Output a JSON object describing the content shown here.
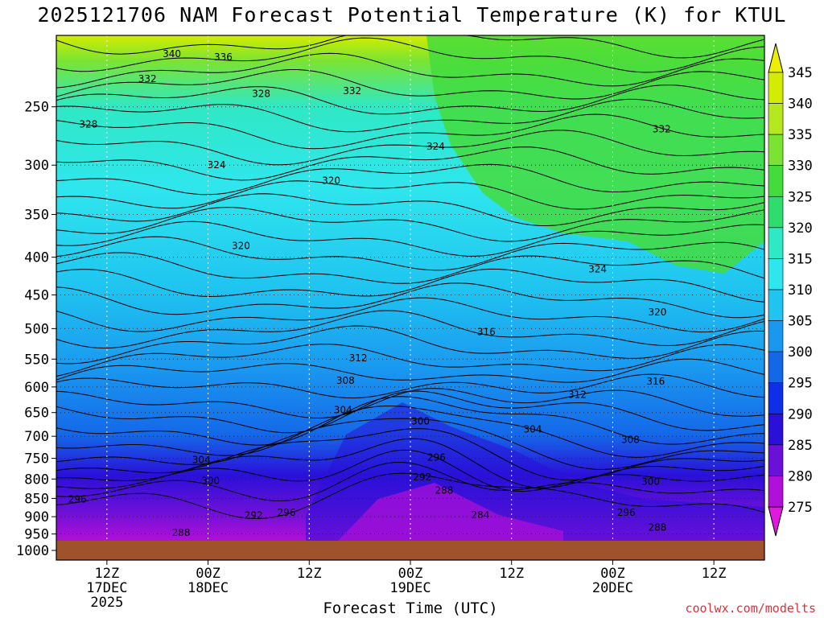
{
  "title": "2025121706 NAM Forecast Potential Temperature (K) for KTUL",
  "credit": "coolwx.com/modelts",
  "chart_data": {
    "type": "heatmap",
    "title": "2025121706 NAM Forecast Potential Temperature (K) for KTUL",
    "xlabel": "Forecast Time (UTC)",
    "ylabel": "",
    "x_ticks": [
      {
        "hour": 6,
        "lines": [
          "12Z",
          "17DEC",
          "2025"
        ]
      },
      {
        "hour": 18,
        "lines": [
          "00Z",
          "18DEC"
        ]
      },
      {
        "hour": 30,
        "lines": [
          "12Z"
        ]
      },
      {
        "hour": 42,
        "lines": [
          "00Z",
          "19DEC"
        ]
      },
      {
        "hour": 54,
        "lines": [
          "12Z"
        ]
      },
      {
        "hour": 66,
        "lines": [
          "00Z",
          "20DEC"
        ]
      },
      {
        "hour": 78,
        "lines": [
          "12Z"
        ]
      }
    ],
    "xlim": [
      0,
      84
    ],
    "y_ticks": [
      250,
      300,
      350,
      400,
      450,
      500,
      550,
      600,
      650,
      700,
      750,
      800,
      850,
      900,
      950,
      1000
    ],
    "ylim": [
      200,
      1000
    ],
    "y_scale": "log-pressure",
    "grid": true,
    "colorbar": {
      "ticks": [
        345,
        340,
        335,
        330,
        325,
        320,
        315,
        310,
        305,
        300,
        295,
        290,
        285,
        280,
        275
      ],
      "colors": [
        "#d4ec00",
        "#b6e820",
        "#7be432",
        "#44dc3c",
        "#2fdc6e",
        "#2fe8c4",
        "#2fe6ee",
        "#1fc4f0",
        "#1a98f0",
        "#1468e8",
        "#0e2ee8",
        "#2a10d8",
        "#6a10d8",
        "#b010d8",
        "#e018e0"
      ]
    },
    "ground_color": "#a0522d",
    "contour_interval": 4,
    "contour_labels": [
      {
        "value": "340",
        "hour": 13.7,
        "p": 212
      },
      {
        "value": "336",
        "hour": 19.8,
        "p": 214
      },
      {
        "value": "332",
        "hour": 10.8,
        "p": 229
      },
      {
        "value": "332",
        "hour": 35.1,
        "p": 238
      },
      {
        "value": "332",
        "hour": 71.8,
        "p": 268
      },
      {
        "value": "328",
        "hour": 3.8,
        "p": 264
      },
      {
        "value": "328",
        "hour": 24.3,
        "p": 240
      },
      {
        "value": "324",
        "hour": 19.0,
        "p": 300
      },
      {
        "value": "324",
        "hour": 45.0,
        "p": 283
      },
      {
        "value": "324",
        "hour": 64.2,
        "p": 415
      },
      {
        "value": "320",
        "hour": 32.6,
        "p": 315
      },
      {
        "value": "320",
        "hour": 21.9,
        "p": 386
      },
      {
        "value": "320",
        "hour": 71.3,
        "p": 475
      },
      {
        "value": "316",
        "hour": 51.0,
        "p": 505
      },
      {
        "value": "316",
        "hour": 71.1,
        "p": 590
      },
      {
        "value": "312",
        "hour": 35.8,
        "p": 548
      },
      {
        "value": "312",
        "hour": 61.8,
        "p": 615
      },
      {
        "value": "308",
        "hour": 34.3,
        "p": 588
      },
      {
        "value": "308",
        "hour": 68.1,
        "p": 708
      },
      {
        "value": "304",
        "hour": 34.0,
        "p": 645
      },
      {
        "value": "304",
        "hour": 56.5,
        "p": 685
      },
      {
        "value": "304",
        "hour": 17.2,
        "p": 754
      },
      {
        "value": "300",
        "hour": 43.2,
        "p": 668
      },
      {
        "value": "300",
        "hour": 18.3,
        "p": 805
      },
      {
        "value": "300",
        "hour": 70.5,
        "p": 807
      },
      {
        "value": "296",
        "hour": 45.1,
        "p": 748
      },
      {
        "value": "296",
        "hour": 2.5,
        "p": 852
      },
      {
        "value": "296",
        "hour": 27.3,
        "p": 888
      },
      {
        "value": "296",
        "hour": 67.6,
        "p": 889
      },
      {
        "value": "292",
        "hour": 43.4,
        "p": 795
      },
      {
        "value": "292",
        "hour": 23.4,
        "p": 896
      },
      {
        "value": "288",
        "hour": 46.0,
        "p": 829
      },
      {
        "value": "288",
        "hour": 14.8,
        "p": 946
      },
      {
        "value": "288",
        "hour": 71.3,
        "p": 931
      },
      {
        "value": "284",
        "hour": 50.3,
        "p": 895
      }
    ]
  }
}
